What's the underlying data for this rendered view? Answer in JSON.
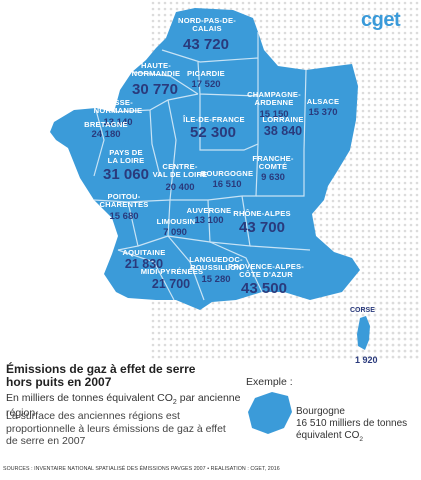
{
  "map": {
    "logo": "cget",
    "regions": [
      {
        "name": "NORD-PAS-DE-\nCALAIS",
        "value": "43 720"
      },
      {
        "name": "HAUTE-\nNORMANDIE",
        "value": "30 770"
      },
      {
        "name": "PICARDIE",
        "value": "17 520"
      },
      {
        "name": "BASSE-\nNORMANDIE",
        "value": "13 140"
      },
      {
        "name": "CHAMPAGNE-\nARDENNE",
        "value": "15 150"
      },
      {
        "name": "ALSACE",
        "value": "15 370"
      },
      {
        "name": "BRETAGNE",
        "value": "24 180"
      },
      {
        "name": "ÎLE-DE-FRANCE",
        "value": "52 300"
      },
      {
        "name": "LORRAINE",
        "value": "38 840"
      },
      {
        "name": "PAYS DE\nLA LOIRE",
        "value": "31 060"
      },
      {
        "name": "CENTRE-\nVAL DE LOIRE",
        "value": "20 400"
      },
      {
        "name": "FRANCHE-\nCOMTÉ",
        "value": "9 630"
      },
      {
        "name": "BOURGOGNE",
        "value": "16 510"
      },
      {
        "name": "POITOU-\nCHARENTES",
        "value": "15 680"
      },
      {
        "name": "LIMOUSIN",
        "value": "7 090"
      },
      {
        "name": "AUVERGNE",
        "value": "13 100"
      },
      {
        "name": "RHÔNE-ALPES",
        "value": "43 700"
      },
      {
        "name": "AQUITAINE",
        "value": "21 830"
      },
      {
        "name": "MIDI-PYRÉNÉES",
        "value": "21 700"
      },
      {
        "name": "LANGUEDOC-\nROUSSILLON",
        "value": "15 280"
      },
      {
        "name": "PROVENCE-ALPES-\nCÔTE D'AZUR",
        "value": "43 500"
      }
    ],
    "corse": {
      "name": "CORSE",
      "value": "1 920"
    }
  },
  "legend": {
    "title": "Émissions de gaz à effet de serre\nhors puits en 2007",
    "subtitle_before": "En milliers de tonnes équivalent CO",
    "subtitle_sub": "2",
    "subtitle_after": " par ancienne région",
    "description": "La surface des anciennes régions est proportionnelle à leurs émissions de gaz à effet de serre en 2007",
    "example_label": "Exemple :",
    "example_region": "Bourgogne",
    "example_value_before": "16 510 milliers de tonnes équivalent CO",
    "example_value_sub": "2"
  },
  "sources": "SOURCES : INVENTAIRE NATIONAL SPATIALISÉ DES ÉMISSIONS PAVGES 2007 • REALISATION : CGET, 2016",
  "colors": {
    "region_fill": "#3b9bd9",
    "region_border": "#c8e3f5",
    "label_value": "#2a3a7c",
    "dot_pattern": "#dcdcdc"
  }
}
